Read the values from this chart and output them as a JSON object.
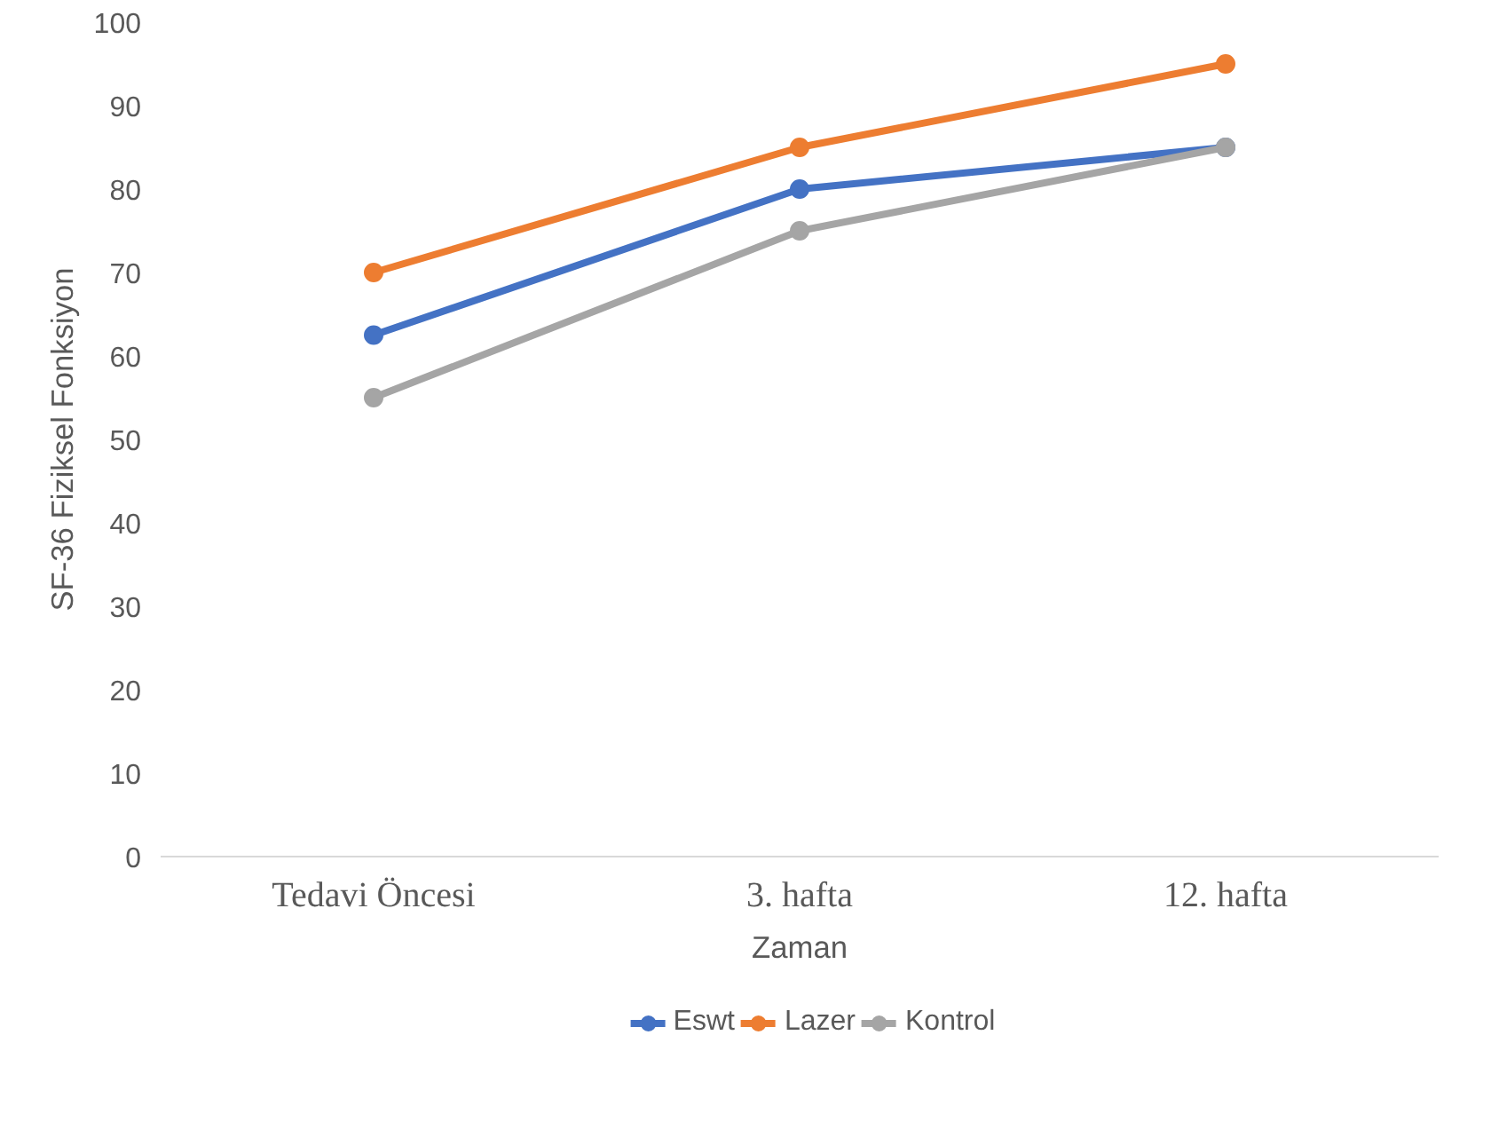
{
  "chart_data": {
    "type": "line",
    "xlabel": "Zaman",
    "ylabel": "SF-36 Fiziksel Fonksiyon",
    "categories": [
      "Tedavi Öncesi",
      "3. hafta",
      "12. hafta"
    ],
    "series": [
      {
        "name": "Eswt",
        "color": "#4472c4",
        "values": [
          62.5,
          80,
          85
        ]
      },
      {
        "name": "Lazer",
        "color": "#ed7d31",
        "values": [
          70,
          85,
          95
        ]
      },
      {
        "name": "Kontrol",
        "color": "#a5a5a5",
        "values": [
          55,
          75,
          85
        ]
      }
    ],
    "ylim": [
      0,
      100
    ],
    "yticks": [
      0,
      10,
      20,
      30,
      40,
      50,
      60,
      70,
      80,
      90,
      100
    ],
    "grid": false,
    "legend": "bottom",
    "marker": "circle",
    "line_style": "solid"
  }
}
